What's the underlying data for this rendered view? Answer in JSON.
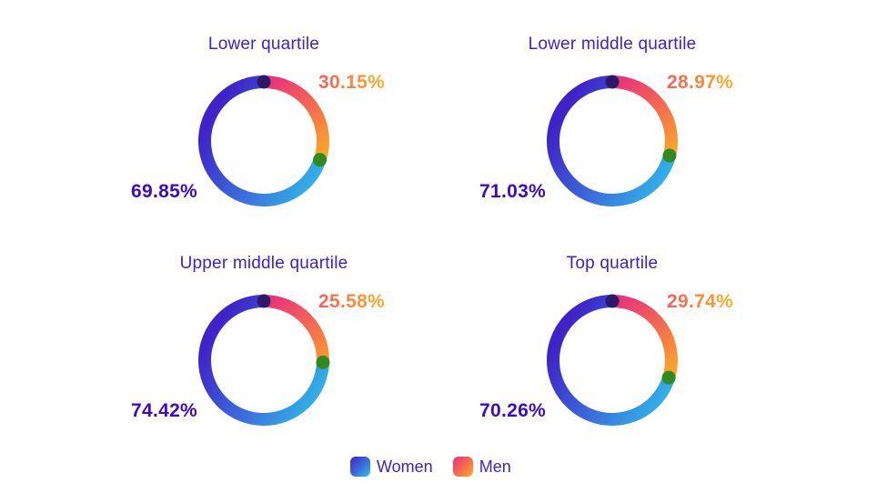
{
  "chart_data": [
    {
      "type": "donut",
      "title": "Lower quartile",
      "series": [
        {
          "name": "Women",
          "value": 69.85,
          "label": "69.85%"
        },
        {
          "name": "Men",
          "value": 30.15,
          "label": "30.15%"
        }
      ]
    },
    {
      "type": "donut",
      "title": "Lower middle quartile",
      "series": [
        {
          "name": "Women",
          "value": 71.03,
          "label": "71.03%"
        },
        {
          "name": "Men",
          "value": 28.97,
          "label": "28.97%"
        }
      ]
    },
    {
      "type": "donut",
      "title": "Upper middle quartile",
      "series": [
        {
          "name": "Women",
          "value": 74.42,
          "label": "74.42%"
        },
        {
          "name": "Men",
          "value": 25.58,
          "label": "25.58%"
        }
      ]
    },
    {
      "type": "donut",
      "title": "Top quartile",
      "series": [
        {
          "name": "Women",
          "value": 70.26,
          "label": "70.26%"
        },
        {
          "name": "Men",
          "value": 29.74,
          "label": "29.74%"
        }
      ]
    }
  ],
  "legend": {
    "items": [
      {
        "label": "Women",
        "icon": "women-swatch-icon"
      },
      {
        "label": "Men",
        "icon": "men-swatch-icon"
      }
    ]
  },
  "colors": {
    "title_text": "#3f1ed6",
    "women_label": "#3d0bc8",
    "women_gradient": [
      "#3f23c9",
      "#3b6fdc",
      "#2fc4ec"
    ],
    "men_gradient": [
      "#e8307c",
      "#f56e4e",
      "#fbb220"
    ],
    "start_dot": "#2b1a6b",
    "end_dot": "#2f8a1f"
  }
}
